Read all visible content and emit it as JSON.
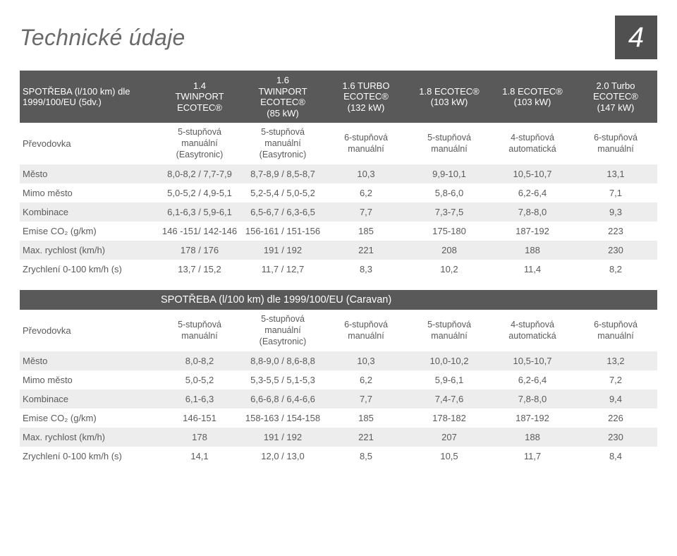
{
  "page": {
    "title": "Technické údaje",
    "chapter_number": "4",
    "colors": {
      "header_bg": "#595959",
      "header_text": "#ffffff",
      "stripe_bg": "#ededed",
      "text": "#5b5b5b",
      "page_bg": "#ffffff"
    }
  },
  "table1": {
    "corner_line1": "SPOTŘEBA (l/100 km) dle",
    "corner_line2": "1999/100/EU (5dv.)",
    "gear_label": "Převodovka",
    "engines": [
      {
        "l1": "1.4",
        "l2": "TWINPORT",
        "l3": "ECOTEC®"
      },
      {
        "l1": "1.6",
        "l2": "TWINPORT",
        "l3": "ECOTEC®",
        "l4": "(85 kW)"
      },
      {
        "l1": "1.6 TURBO",
        "l2": "ECOTEC®",
        "l3": "(132 kW)"
      },
      {
        "l1": "1.8 ECOTEC®",
        "l2": "(103 kW)"
      },
      {
        "l1": "1.8 ECOTEC®",
        "l2": "(103 kW)"
      },
      {
        "l1": "2.0 Turbo",
        "l2": "ECOTEC®",
        "l3": "(147 kW)"
      }
    ],
    "gears": [
      {
        "l1": "5-stupňová",
        "l2": "manuální",
        "l3": "(Easytronic)"
      },
      {
        "l1": "5-stupňová",
        "l2": "manuální",
        "l3": "(Easytronic)"
      },
      {
        "l1": "6-stupňová",
        "l2": "manuální"
      },
      {
        "l1": "5-stupňová",
        "l2": "manuální"
      },
      {
        "l1": "4-stupňová",
        "l2": "automatická"
      },
      {
        "l1": "6-stupňová",
        "l2": "manuální"
      }
    ],
    "rows": [
      {
        "label": "Město",
        "cells": [
          "8,0-8,2 / 7,7-7,9",
          "8,7-8,9 / 8,5-8,7",
          "10,3",
          "9,9-10,1",
          "10,5-10,7",
          "13,1"
        ]
      },
      {
        "label": "Mimo město",
        "cells": [
          "5,0-5,2 / 4,9-5,1",
          "5,2-5,4 / 5,0-5,2",
          "6,2",
          "5,8-6,0",
          "6,2-6,4",
          "7,1"
        ]
      },
      {
        "label": "Kombinace",
        "cells": [
          "6,1-6,3 / 5,9-6,1",
          "6,5-6,7 / 6,3-6,5",
          "7,7",
          "7,3-7,5",
          "7,8-8,0",
          "9,3"
        ]
      },
      {
        "label": "Emise CO₂ (g/km)",
        "cells": [
          "146 -151/ 142-146",
          "156-161 / 151-156",
          "185",
          "175-180",
          "187-192",
          "223"
        ]
      },
      {
        "label": "Max. rychlost (km/h)",
        "cells": [
          "178 / 176",
          "191 / 192",
          "221",
          "208",
          "188",
          "230"
        ]
      },
      {
        "label": "Zrychlení 0-100 km/h (s)",
        "cells": [
          "13,7 / 15,2",
          "11,7 / 12,7",
          "8,3",
          "10,2",
          "11,4",
          "8,2"
        ]
      }
    ]
  },
  "table2": {
    "header_title": "SPOTŘEBA (l/100 km) dle 1999/100/EU (Caravan)",
    "gear_label": "Převodovka",
    "gears": [
      {
        "l1": "5-stupňová",
        "l2": "manuální"
      },
      {
        "l1": "5-stupňová",
        "l2": "manuální",
        "l3": "(Easytronic)"
      },
      {
        "l1": "6-stupňová",
        "l2": "manuální"
      },
      {
        "l1": "5-stupňová",
        "l2": "manuální"
      },
      {
        "l1": "4-stupňová",
        "l2": "automatická"
      },
      {
        "l1": "6-stupňová",
        "l2": "manuální"
      }
    ],
    "rows": [
      {
        "label": "Město",
        "cells": [
          "8,0-8,2",
          "8,8-9,0 / 8,6-8,8",
          "10,3",
          "10,0-10,2",
          "10,5-10,7",
          "13,2"
        ]
      },
      {
        "label": "Mimo město",
        "cells": [
          "5,0-5,2",
          "5,3-5,5 / 5,1-5,3",
          "6,2",
          "5,9-6,1",
          "6,2-6,4",
          "7,2"
        ]
      },
      {
        "label": "Kombinace",
        "cells": [
          "6,1-6,3",
          "6,6-6,8 / 6,4-6,6",
          "7,7",
          "7,4-7,6",
          "7,8-8,0",
          "9,4"
        ]
      },
      {
        "label": "Emise CO₂ (g/km)",
        "cells": [
          "146-151",
          "158-163 / 154-158",
          "185",
          "178-182",
          "187-192",
          "226"
        ]
      },
      {
        "label": "Max. rychlost (km/h)",
        "cells": [
          "178",
          "191 / 192",
          "221",
          "207",
          "188",
          "230"
        ]
      },
      {
        "label": "Zrychlení 0-100 km/h (s)",
        "cells": [
          "14,1",
          "12,0 / 13,0",
          "8,5",
          "10,5",
          "11,7",
          "8,4"
        ]
      }
    ]
  }
}
